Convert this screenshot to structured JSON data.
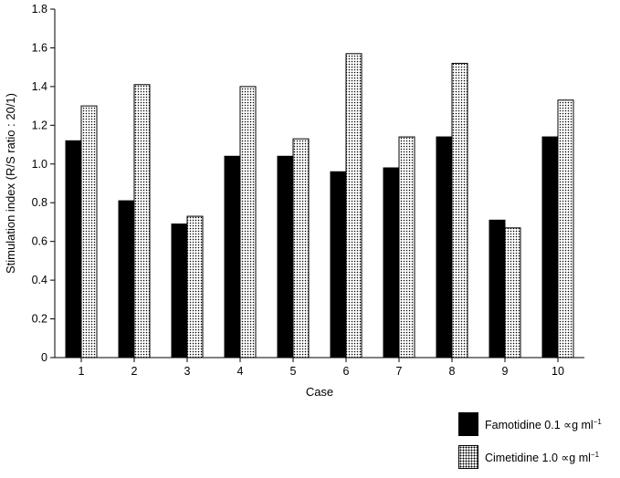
{
  "chart_data": {
    "type": "bar",
    "title": "",
    "xlabel": "Case",
    "ylabel": "Stimulation index (R/S ratio : 20/1)",
    "ylim": [
      0,
      1.8
    ],
    "yticks": [
      "0",
      "0.2",
      "0.4",
      "0.6",
      "0.8",
      "1.0",
      "1.2",
      "1.4",
      "1.6",
      "1.8"
    ],
    "categories": [
      "1",
      "2",
      "3",
      "4",
      "5",
      "6",
      "7",
      "8",
      "9",
      "10"
    ],
    "series": [
      {
        "name": "Famotidine 0.1 ∝g ml",
        "unit_sup": "−1",
        "values": [
          1.12,
          0.81,
          0.69,
          1.04,
          1.04,
          0.96,
          0.98,
          1.14,
          0.71,
          1.14
        ]
      },
      {
        "name": "Cimetidine 1.0 ∝g ml",
        "unit_sup": "−1",
        "values": [
          1.3,
          1.41,
          0.73,
          1.4,
          1.13,
          1.57,
          1.14,
          1.52,
          0.67,
          1.33
        ]
      }
    ],
    "grid": false,
    "legend_position": "bottom-right"
  }
}
